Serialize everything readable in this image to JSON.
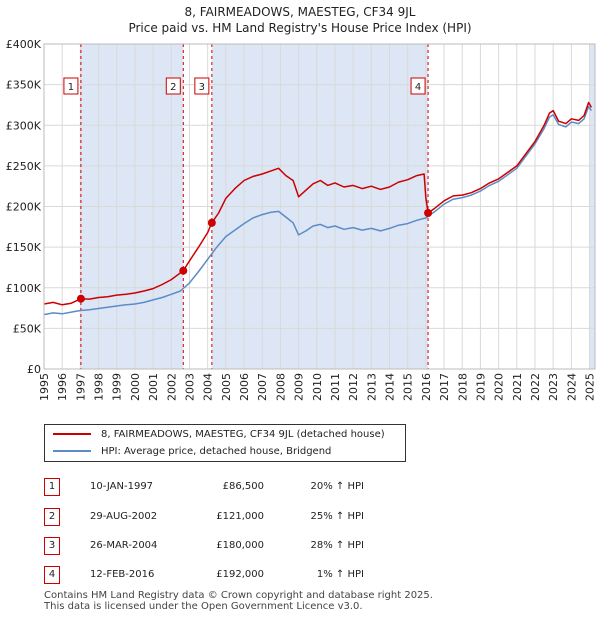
{
  "title": {
    "line1": "8, FAIRMEADOWS, MAESTEG, CF34 9JL",
    "line2": "Price paid vs. HM Land Registry's House Price Index (HPI)"
  },
  "colors": {
    "property": "#cc0000",
    "hpi": "#5b8cc8",
    "grid": "#d9d9d9",
    "shade": "#dde6f5",
    "marker_border": "#cc0000"
  },
  "chart_data": {
    "type": "line",
    "xlim": [
      1995,
      2025.3
    ],
    "ylim": [
      0,
      400000
    ],
    "x_ticks": [
      "1995",
      "1996",
      "1997",
      "1998",
      "1999",
      "2000",
      "2001",
      "2002",
      "2003",
      "2004",
      "2005",
      "2006",
      "2007",
      "2008",
      "2009",
      "2010",
      "2011",
      "2012",
      "2013",
      "2014",
      "2015",
      "2016",
      "2017",
      "2018",
      "2019",
      "2020",
      "2021",
      "2022",
      "2023",
      "2024",
      "2025"
    ],
    "y_ticks": [
      {
        "value": 0,
        "label": "£0"
      },
      {
        "value": 50000,
        "label": "£50K"
      },
      {
        "value": 100000,
        "label": "£100K"
      },
      {
        "value": 150000,
        "label": "£150K"
      },
      {
        "value": 200000,
        "label": "£200K"
      },
      {
        "value": 250000,
        "label": "£250K"
      },
      {
        "value": 300000,
        "label": "£300K"
      },
      {
        "value": 350000,
        "label": "£350K"
      },
      {
        "value": 400000,
        "label": "£400K"
      }
    ],
    "series": [
      {
        "name": "8, FAIRMEADOWS, MAESTEG, CF34 9JL (detached house)",
        "color": "#cc0000",
        "points": [
          [
            1995.0,
            80000
          ],
          [
            1995.5,
            82000
          ],
          [
            1996.0,
            79000
          ],
          [
            1996.5,
            81000
          ],
          [
            1997.03,
            86500
          ],
          [
            1997.5,
            86000
          ],
          [
            1998.0,
            88000
          ],
          [
            1998.5,
            89000
          ],
          [
            1999.0,
            91000
          ],
          [
            1999.5,
            92000
          ],
          [
            2000.0,
            93500
          ],
          [
            2000.5,
            96000
          ],
          [
            2001.0,
            99000
          ],
          [
            2001.5,
            104000
          ],
          [
            2002.0,
            110000
          ],
          [
            2002.66,
            121000
          ],
          [
            2003.0,
            133000
          ],
          [
            2003.5,
            150000
          ],
          [
            2004.0,
            168000
          ],
          [
            2004.23,
            180000
          ],
          [
            2004.6,
            192000
          ],
          [
            2005.0,
            210000
          ],
          [
            2005.5,
            222000
          ],
          [
            2006.0,
            232000
          ],
          [
            2006.5,
            237000
          ],
          [
            2007.0,
            240000
          ],
          [
            2007.5,
            244000
          ],
          [
            2007.9,
            247000
          ],
          [
            2008.3,
            238000
          ],
          [
            2008.7,
            232000
          ],
          [
            2009.0,
            212000
          ],
          [
            2009.4,
            220000
          ],
          [
            2009.8,
            228000
          ],
          [
            2010.2,
            232000
          ],
          [
            2010.6,
            226000
          ],
          [
            2011.0,
            229000
          ],
          [
            2011.5,
            224000
          ],
          [
            2012.0,
            226000
          ],
          [
            2012.5,
            222000
          ],
          [
            2013.0,
            225000
          ],
          [
            2013.5,
            221000
          ],
          [
            2014.0,
            224000
          ],
          [
            2014.5,
            230000
          ],
          [
            2015.0,
            233000
          ],
          [
            2015.5,
            238000
          ],
          [
            2015.9,
            240000
          ],
          [
            2016.0,
            210000
          ],
          [
            2016.12,
            192000
          ],
          [
            2016.5,
            198000
          ],
          [
            2017.0,
            207000
          ],
          [
            2017.5,
            213000
          ],
          [
            2018.0,
            214000
          ],
          [
            2018.5,
            217000
          ],
          [
            2019.0,
            222000
          ],
          [
            2019.5,
            229000
          ],
          [
            2020.0,
            234000
          ],
          [
            2020.5,
            242000
          ],
          [
            2021.0,
            250000
          ],
          [
            2021.5,
            265000
          ],
          [
            2022.0,
            280000
          ],
          [
            2022.5,
            300000
          ],
          [
            2022.8,
            315000
          ],
          [
            2023.0,
            318000
          ],
          [
            2023.3,
            305000
          ],
          [
            2023.7,
            302000
          ],
          [
            2024.0,
            308000
          ],
          [
            2024.4,
            306000
          ],
          [
            2024.7,
            312000
          ],
          [
            2024.95,
            328000
          ],
          [
            2025.1,
            322000
          ]
        ]
      },
      {
        "name": "HPI: Average price, detached house, Bridgend",
        "color": "#5b8cc8",
        "points": [
          [
            1995.0,
            67000
          ],
          [
            1995.5,
            69000
          ],
          [
            1996.0,
            68000
          ],
          [
            1996.5,
            70000
          ],
          [
            1997.0,
            72000
          ],
          [
            1997.5,
            73000
          ],
          [
            1998.0,
            74500
          ],
          [
            1998.5,
            76000
          ],
          [
            1999.0,
            77500
          ],
          [
            1999.5,
            79000
          ],
          [
            2000.0,
            80000
          ],
          [
            2000.5,
            82000
          ],
          [
            2001.0,
            85000
          ],
          [
            2001.5,
            88000
          ],
          [
            2002.0,
            92000
          ],
          [
            2002.5,
            96000
          ],
          [
            2003.0,
            106000
          ],
          [
            2003.5,
            120000
          ],
          [
            2004.0,
            135000
          ],
          [
            2004.5,
            150000
          ],
          [
            2005.0,
            163000
          ],
          [
            2005.5,
            171000
          ],
          [
            2006.0,
            179000
          ],
          [
            2006.5,
            186000
          ],
          [
            2007.0,
            190000
          ],
          [
            2007.5,
            193000
          ],
          [
            2007.9,
            194000
          ],
          [
            2008.3,
            187000
          ],
          [
            2008.7,
            180000
          ],
          [
            2009.0,
            165000
          ],
          [
            2009.4,
            170000
          ],
          [
            2009.8,
            176000
          ],
          [
            2010.2,
            178000
          ],
          [
            2010.6,
            174000
          ],
          [
            2011.0,
            176000
          ],
          [
            2011.5,
            172000
          ],
          [
            2012.0,
            174000
          ],
          [
            2012.5,
            171000
          ],
          [
            2013.0,
            173000
          ],
          [
            2013.5,
            170000
          ],
          [
            2014.0,
            173000
          ],
          [
            2014.5,
            177000
          ],
          [
            2015.0,
            179000
          ],
          [
            2015.5,
            183000
          ],
          [
            2016.0,
            186000
          ],
          [
            2016.5,
            194000
          ],
          [
            2017.0,
            203000
          ],
          [
            2017.5,
            209000
          ],
          [
            2018.0,
            211000
          ],
          [
            2018.5,
            214000
          ],
          [
            2019.0,
            219000
          ],
          [
            2019.5,
            226000
          ],
          [
            2020.0,
            231000
          ],
          [
            2020.5,
            239000
          ],
          [
            2021.0,
            247000
          ],
          [
            2021.5,
            262000
          ],
          [
            2022.0,
            277000
          ],
          [
            2022.5,
            296000
          ],
          [
            2022.8,
            310000
          ],
          [
            2023.0,
            313000
          ],
          [
            2023.3,
            301000
          ],
          [
            2023.7,
            298000
          ],
          [
            2024.0,
            304000
          ],
          [
            2024.4,
            302000
          ],
          [
            2024.7,
            308000
          ],
          [
            2024.95,
            323000
          ],
          [
            2025.1,
            318000
          ]
        ]
      }
    ],
    "sales": [
      {
        "num": "1",
        "x": 1997.03,
        "price": 86500
      },
      {
        "num": "2",
        "x": 2002.66,
        "price": 121000
      },
      {
        "num": "3",
        "x": 2004.23,
        "price": 180000
      },
      {
        "num": "4",
        "x": 2016.12,
        "price": 192000
      }
    ],
    "shaded_ranges": [
      [
        1997.03,
        2002.66
      ],
      [
        2004.23,
        2016.12
      ],
      [
        2025.0,
        2025.3
      ]
    ]
  },
  "legend": {
    "property_label": "8, FAIRMEADOWS, MAESTEG, CF34 9JL (detached house)",
    "hpi_label": "HPI: Average price, detached house, Bridgend"
  },
  "sales_table": [
    {
      "num": "1",
      "date": "10-JAN-1997",
      "price": "£86,500",
      "hpi": "20% ↑ HPI"
    },
    {
      "num": "2",
      "date": "29-AUG-2002",
      "price": "£121,000",
      "hpi": "25% ↑ HPI"
    },
    {
      "num": "3",
      "date": "26-MAR-2004",
      "price": "£180,000",
      "hpi": "28% ↑ HPI"
    },
    {
      "num": "4",
      "date": "12-FEB-2016",
      "price": "£192,000",
      "hpi": "1% ↑ HPI"
    }
  ],
  "footer": {
    "line1": "Contains HM Land Registry data © Crown copyright and database right 2025.",
    "line2": "This data is licensed under the Open Government Licence v3.0."
  }
}
